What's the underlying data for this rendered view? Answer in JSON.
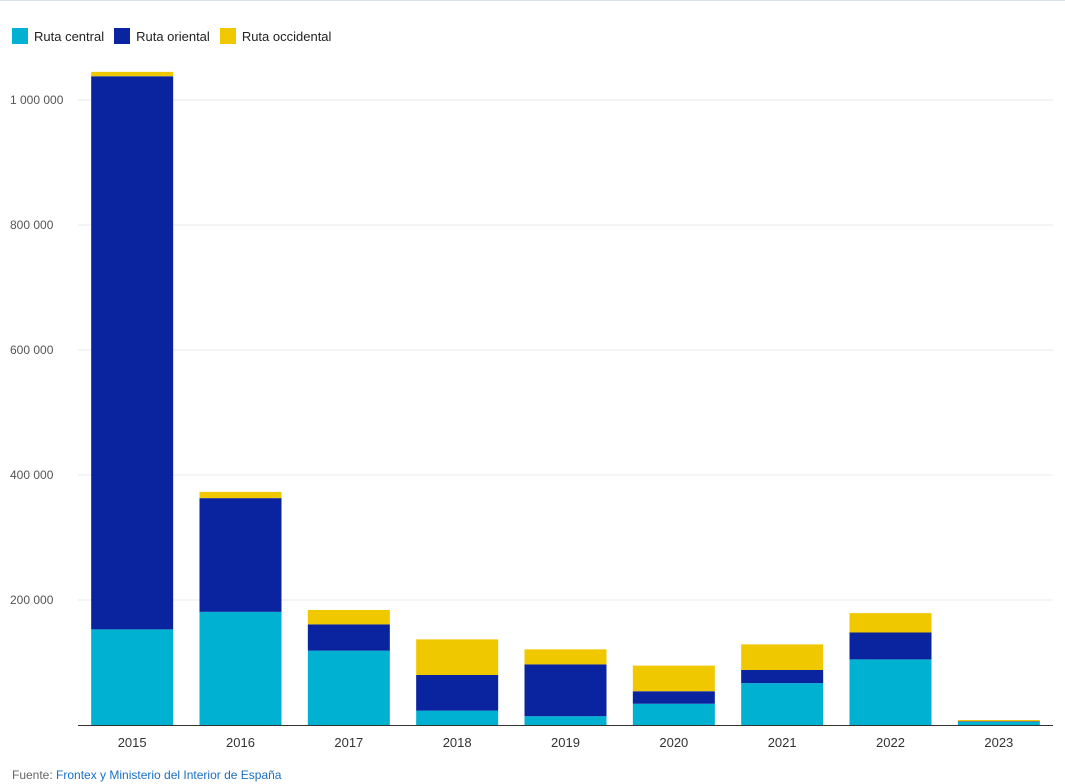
{
  "chart_data": {
    "type": "bar",
    "stacked": true,
    "categories": [
      "2015",
      "2016",
      "2017",
      "2018",
      "2019",
      "2020",
      "2021",
      "2022",
      "2023"
    ],
    "series": [
      {
        "name": "Ruta central",
        "color": "#00b1d2",
        "values": [
          153000,
          181000,
          119000,
          23000,
          14000,
          34000,
          67000,
          105000,
          5000
        ]
      },
      {
        "name": "Ruta oriental",
        "color": "#0a24a0",
        "values": [
          885000,
          182000,
          42000,
          57000,
          83000,
          20000,
          21000,
          43000,
          1000
        ]
      },
      {
        "name": "Ruta occidental",
        "color": "#efc800",
        "values": [
          7000,
          10000,
          23000,
          57000,
          24000,
          41000,
          41000,
          31000,
          2000
        ]
      }
    ],
    "ylim": [
      0,
      1000000
    ],
    "yticks": [
      200000,
      400000,
      600000,
      800000,
      1000000
    ],
    "ytick_labels": [
      "200 000",
      "400 000",
      "600 000",
      "800 000",
      "1 000 000"
    ],
    "grid": true,
    "legend_position": "top-left",
    "title": "",
    "xlabel": "",
    "ylabel": ""
  },
  "legend": {
    "items": [
      {
        "label": "Ruta central"
      },
      {
        "label": "Ruta oriental"
      },
      {
        "label": "Ruta occidental"
      }
    ]
  },
  "source": {
    "prefix": "Fuente: ",
    "link_text": "Frontex y Ministerio del Interior de España"
  },
  "colors": {
    "grid": "#e8e8e8",
    "axis": "#333333",
    "tick_text": "#555555"
  }
}
